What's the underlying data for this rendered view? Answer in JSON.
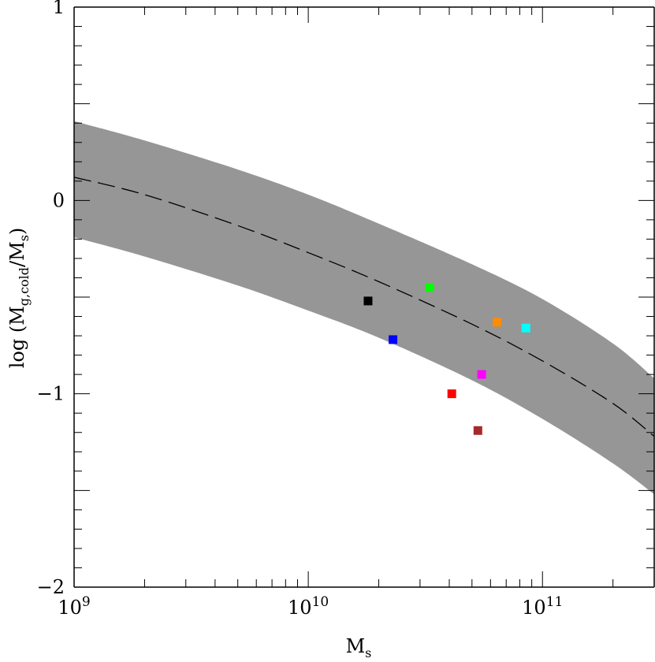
{
  "chart_data": {
    "type": "scatter",
    "title": "",
    "xlabel": {
      "main": "M",
      "sub": "s"
    },
    "ylabel": {
      "prefix": "log  (M",
      "sub1": "g,cold",
      "middle": "/M",
      "sub2": "s",
      "suffix": ")"
    },
    "x_scale": "log",
    "xlim": [
      1000000000,
      300000000000
    ],
    "ylim": [
      -2,
      1
    ],
    "x_ticks": [
      {
        "value": 1000000000,
        "base": "10",
        "exp": "9"
      },
      {
        "value": 10000000000,
        "base": "10",
        "exp": "10"
      },
      {
        "value": 100000000000,
        "base": "10",
        "exp": "11"
      }
    ],
    "y_ticks": [
      {
        "value": 1,
        "label": "1"
      },
      {
        "value": 0,
        "label": "0"
      },
      {
        "value": -1,
        "label": "−1"
      },
      {
        "value": -2,
        "label": "−2"
      }
    ],
    "band": {
      "color": "#969696",
      "x": [
        1000000000,
        2000000000,
        5000000000,
        10000000000,
        20000000000,
        50000000000,
        100000000000,
        200000000000,
        300000000000
      ],
      "upper": [
        0.41,
        0.31,
        0.16,
        0.03,
        -0.12,
        -0.33,
        -0.51,
        -0.74,
        -0.92
      ],
      "lower": [
        -0.19,
        -0.29,
        -0.44,
        -0.57,
        -0.71,
        -0.93,
        -1.13,
        -1.36,
        -1.52
      ]
    },
    "median_line": {
      "style": "dashed",
      "color": "#000000",
      "x": [
        1000000000,
        2000000000,
        5000000000,
        10000000000,
        20000000000,
        50000000000,
        100000000000,
        200000000000,
        300000000000
      ],
      "y": [
        0.12,
        0.03,
        -0.13,
        -0.27,
        -0.42,
        -0.64,
        -0.83,
        -1.05,
        -1.22
      ]
    },
    "points": [
      {
        "x": 18000000000,
        "y": -0.52,
        "color": "#000000"
      },
      {
        "x": 23000000000,
        "y": -0.72,
        "color": "#0000ff"
      },
      {
        "x": 33000000000,
        "y": -0.45,
        "color": "#00ff00"
      },
      {
        "x": 41000000000,
        "y": -1.0,
        "color": "#ff0000"
      },
      {
        "x": 53000000000,
        "y": -1.19,
        "color": "#a52a2a"
      },
      {
        "x": 55000000000,
        "y": -0.9,
        "color": "#ff00ff"
      },
      {
        "x": 64000000000,
        "y": -0.63,
        "color": "#ff8c00"
      },
      {
        "x": 85000000000,
        "y": -0.66,
        "color": "#00ffff"
      }
    ],
    "grid": false,
    "legend": "none"
  }
}
